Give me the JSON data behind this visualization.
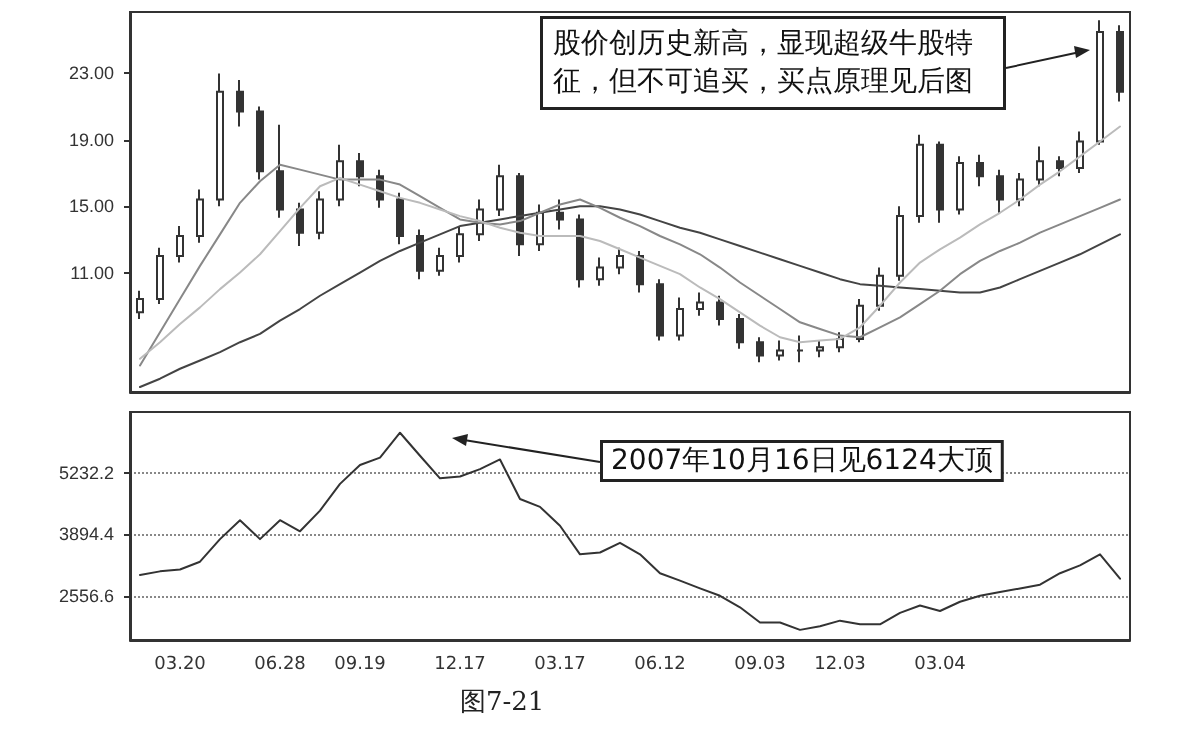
{
  "chart_data": [
    {
      "type": "candlestick",
      "categories": [
        null,
        null,
        "03.20",
        null,
        null,
        null,
        null,
        "06.28",
        null,
        null,
        null,
        "09.19",
        null,
        null,
        null,
        null,
        "12.17",
        null,
        null,
        null,
        null,
        "03.17",
        null,
        null,
        null,
        null,
        "06.12",
        null,
        null,
        null,
        null,
        "09.03",
        null,
        null,
        null,
        "12.03",
        null,
        null,
        null,
        null,
        "03.04",
        null,
        null,
        null,
        null,
        null,
        null,
        null,
        null,
        null
      ],
      "ohlc": [
        [
          8.6,
          9.9,
          8.2,
          9.4
        ],
        [
          9.4,
          12.5,
          9.1,
          12.0
        ],
        [
          12.0,
          13.8,
          11.6,
          13.2
        ],
        [
          13.2,
          16.0,
          12.8,
          15.4
        ],
        [
          15.4,
          23.0,
          15.0,
          21.9
        ],
        [
          21.9,
          22.6,
          19.8,
          20.7
        ],
        [
          20.7,
          21.0,
          16.6,
          17.1
        ],
        [
          17.1,
          19.9,
          14.3,
          14.8
        ],
        [
          14.8,
          15.2,
          12.6,
          13.4
        ],
        [
          13.4,
          15.9,
          13.0,
          15.4
        ],
        [
          15.4,
          18.7,
          15.0,
          17.7
        ],
        [
          17.7,
          18.2,
          16.2,
          16.8
        ],
        [
          16.8,
          17.2,
          14.9,
          15.4
        ],
        [
          15.4,
          15.8,
          12.7,
          13.2
        ],
        [
          13.2,
          13.6,
          10.6,
          11.1
        ],
        [
          11.1,
          12.5,
          10.8,
          12.0
        ],
        [
          12.0,
          13.8,
          11.6,
          13.3
        ],
        [
          13.3,
          15.4,
          12.9,
          14.8
        ],
        [
          14.8,
          17.5,
          14.4,
          16.8
        ],
        [
          16.8,
          17.0,
          12.0,
          12.7
        ],
        [
          12.7,
          15.1,
          12.3,
          14.6
        ],
        [
          14.6,
          15.4,
          13.6,
          14.2
        ],
        [
          14.2,
          14.5,
          10.1,
          10.6
        ],
        [
          10.6,
          11.9,
          10.2,
          11.3
        ],
        [
          11.3,
          12.5,
          10.9,
          12.0
        ],
        [
          12.0,
          12.3,
          9.8,
          10.3
        ],
        [
          10.3,
          10.6,
          6.9,
          7.2
        ],
        [
          7.2,
          9.5,
          6.9,
          8.8
        ],
        [
          8.8,
          9.8,
          8.4,
          9.2
        ],
        [
          9.2,
          9.6,
          7.8,
          8.2
        ],
        [
          8.2,
          8.5,
          6.4,
          6.8
        ],
        [
          6.8,
          7.1,
          5.6,
          6.0
        ],
        [
          6.0,
          6.9,
          5.7,
          6.3
        ],
        [
          6.3,
          7.2,
          5.6,
          6.3
        ],
        [
          6.3,
          6.9,
          5.9,
          6.5
        ],
        [
          6.5,
          7.4,
          6.2,
          7.0
        ],
        [
          7.0,
          9.4,
          6.8,
          9.0
        ],
        [
          9.0,
          11.3,
          8.7,
          10.8
        ],
        [
          10.8,
          15.0,
          10.5,
          14.4
        ],
        [
          14.4,
          19.3,
          14.0,
          18.7
        ],
        [
          18.7,
          18.9,
          14.0,
          14.8
        ],
        [
          14.8,
          18.0,
          14.5,
          17.6
        ],
        [
          17.6,
          18.1,
          16.2,
          16.8
        ],
        [
          16.8,
          17.2,
          14.6,
          15.4
        ],
        [
          15.4,
          17.0,
          15.0,
          16.6
        ],
        [
          16.6,
          18.6,
          16.2,
          17.7
        ],
        [
          17.7,
          18.0,
          16.8,
          17.3
        ],
        [
          17.3,
          19.5,
          17.0,
          18.9
        ],
        [
          18.9,
          26.2,
          18.7,
          25.5
        ],
        [
          25.5,
          25.9,
          21.3,
          21.9
        ]
      ],
      "color": "#333333",
      "series": [
        {
          "type": "line",
          "color": "#444444",
          "values": [
            4.1,
            4.6,
            5.2,
            5.7,
            6.2,
            6.8,
            7.3,
            8.1,
            8.8,
            9.6,
            10.3,
            11.0,
            11.7,
            12.3,
            12.8,
            13.3,
            13.8,
            14.0,
            14.2,
            14.4,
            14.6,
            14.8,
            15.0,
            15.0,
            14.8,
            14.5,
            14.1,
            13.7,
            13.4,
            13.0,
            12.6,
            12.2,
            11.8,
            11.4,
            11.0,
            10.6,
            10.3,
            10.2,
            10.1,
            10.0,
            9.9,
            9.8,
            9.8,
            10.1,
            10.6,
            11.1,
            11.6,
            12.1,
            12.7,
            13.3
          ]
        },
        {
          "type": "line",
          "color": "#888888",
          "values": [
            5.4,
            7.4,
            9.4,
            11.4,
            13.3,
            15.2,
            16.5,
            17.5,
            17.2,
            16.9,
            16.6,
            16.6,
            16.6,
            16.3,
            15.6,
            14.9,
            14.2,
            14.0,
            13.9,
            14.1,
            14.6,
            15.1,
            15.4,
            14.9,
            14.3,
            13.8,
            13.2,
            12.7,
            12.1,
            11.3,
            10.4,
            9.6,
            8.8,
            8.0,
            7.6,
            7.2,
            7.1,
            7.7,
            8.3,
            9.1,
            9.9,
            10.9,
            11.7,
            12.3,
            12.8,
            13.4,
            13.9,
            14.4,
            14.9,
            15.4
          ]
        },
        {
          "type": "line",
          "color": "#bbbbbb",
          "values": [
            5.8,
            6.8,
            7.9,
            8.9,
            10.0,
            11.0,
            12.1,
            13.5,
            14.9,
            16.2,
            16.7,
            16.3,
            15.9,
            15.5,
            15.2,
            14.8,
            14.4,
            14.1,
            13.7,
            13.4,
            13.2,
            13.2,
            13.2,
            12.9,
            12.4,
            11.9,
            11.4,
            10.9,
            10.1,
            9.4,
            8.6,
            7.8,
            7.1,
            6.8,
            6.9,
            7.0,
            7.7,
            9.0,
            10.4,
            11.6,
            12.4,
            13.1,
            13.9,
            14.6,
            15.4,
            16.3,
            17.1,
            18.0,
            18.9,
            19.8
          ]
        }
      ],
      "ylim": [
        3.8,
        26.7
      ],
      "yticks": [
        {
          "value": 11,
          "label": "11.00"
        },
        {
          "value": 15,
          "label": "15.00"
        },
        {
          "value": 19,
          "label": "19.00"
        },
        {
          "value": 23,
          "label": "23.00"
        }
      ],
      "tick_labels": "y",
      "grid": false,
      "marker": "none",
      "annotations": [
        "股价创历史新高，显现超级牛股特征，但不可追买，买点原理见后图"
      ]
    },
    {
      "type": "line",
      "categories": [
        null,
        null,
        "03.20",
        null,
        null,
        null,
        null,
        "06.28",
        null,
        null,
        null,
        "09.19",
        null,
        null,
        null,
        null,
        "12.17",
        null,
        null,
        null,
        null,
        "03.17",
        null,
        null,
        null,
        null,
        "06.12",
        null,
        null,
        null,
        null,
        "09.03",
        null,
        null,
        null,
        "12.03",
        null,
        null,
        null,
        null,
        "03.04",
        null,
        null,
        null,
        null,
        null,
        null,
        null,
        null,
        null
      ],
      "series": [
        {
          "color": "#333333",
          "values": [
            3010,
            3090,
            3130,
            3300,
            3790,
            4200,
            3790,
            4200,
            3960,
            4410,
            4990,
            5400,
            5560,
            6100,
            5600,
            5110,
            5150,
            5310,
            5520,
            4660,
            4490,
            4080,
            3460,
            3500,
            3710,
            3460,
            3050,
            2890,
            2720,
            2560,
            2310,
            1980,
            1980,
            1820,
            1900,
            2020,
            1940,
            1940,
            2190,
            2350,
            2230,
            2430,
            2560,
            2640,
            2720,
            2800,
            3050,
            3220,
            3460,
            2930
          ]
        }
      ],
      "ylim": [
        1600,
        6550
      ],
      "yticks": [
        2556.6,
        3894.4,
        5232.2
      ],
      "grid": "y",
      "marker": "none",
      "annotations": [
        "2007年10月16日见6124大顶",
        "图7-21"
      ]
    }
  ]
}
